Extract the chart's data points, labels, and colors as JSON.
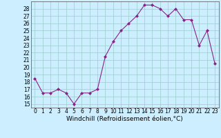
{
  "x": [
    0,
    1,
    2,
    3,
    4,
    5,
    6,
    7,
    8,
    9,
    10,
    11,
    12,
    13,
    14,
    15,
    16,
    17,
    18,
    19,
    20,
    21,
    22,
    23
  ],
  "y": [
    18.5,
    16.5,
    16.5,
    17.0,
    16.5,
    15.0,
    16.5,
    16.5,
    17.0,
    21.5,
    23.5,
    25.0,
    26.0,
    27.0,
    28.5,
    28.5,
    28.0,
    27.0,
    28.0,
    26.5,
    26.5,
    23.0,
    25.0,
    20.5
  ],
  "line_color": "#882288",
  "marker": "D",
  "marker_size": 2.0,
  "bg_color": "#cceeff",
  "grid_color": "#99cccc",
  "xlabel": "Windchill (Refroidissement éolien,°C)",
  "xlim": [
    -0.5,
    23.5
  ],
  "ylim": [
    14.5,
    29.0
  ],
  "yticks": [
    15,
    16,
    17,
    18,
    19,
    20,
    21,
    22,
    23,
    24,
    25,
    26,
    27,
    28
  ],
  "xticks": [
    0,
    1,
    2,
    3,
    4,
    5,
    6,
    7,
    8,
    9,
    10,
    11,
    12,
    13,
    14,
    15,
    16,
    17,
    18,
    19,
    20,
    21,
    22,
    23
  ],
  "tick_fontsize": 5.5,
  "xlabel_fontsize": 6.5,
  "line_width": 0.8
}
